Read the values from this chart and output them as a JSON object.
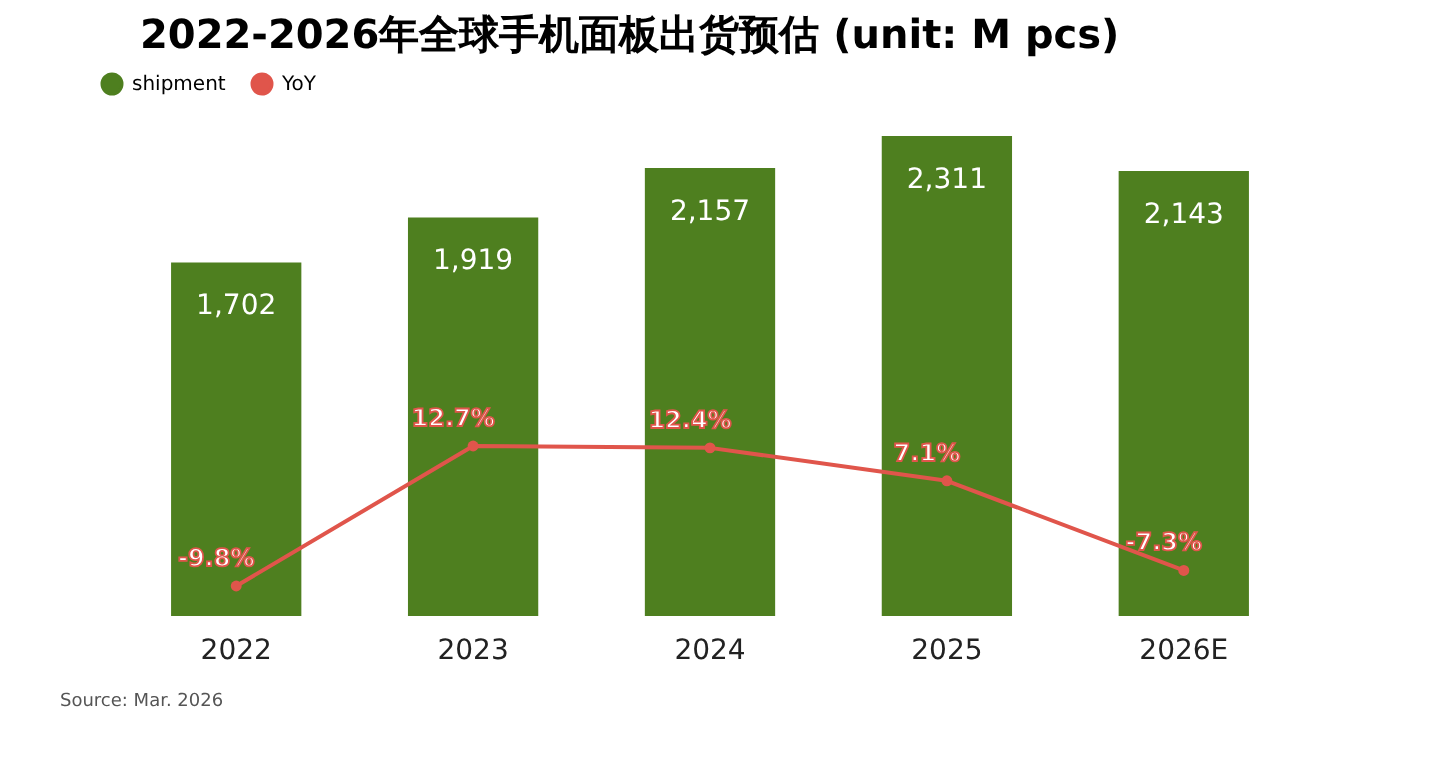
{
  "chart_data": {
    "type": "bar",
    "title": "2022-2026年全球手机面板出货预估 (unit: M pcs)",
    "categories": [
      "2022",
      "2023",
      "2024",
      "2025",
      "2026E"
    ],
    "series": [
      {
        "name": "shipment",
        "color": "#4e7f1f",
        "values": [
          1702,
          1919,
          2157,
          2311,
          2143
        ],
        "value_labels": [
          "1,702",
          "1,919",
          "2,157",
          "2,311",
          "2,143"
        ]
      },
      {
        "name": "YoY",
        "type": "line",
        "axis": "y2",
        "color": "#e0554b",
        "marker": "circle",
        "values": [
          -9.8,
          12.7,
          12.4,
          7.1,
          -7.3
        ],
        "value_labels": [
          "-9.8%",
          "12.7%",
          "12.4%",
          "7.1%",
          "-7.3%"
        ]
      }
    ],
    "tick_labels": "x",
    "grid": false,
    "legend": "top",
    "annotations": [
      "Source: Mar. 2026"
    ]
  }
}
